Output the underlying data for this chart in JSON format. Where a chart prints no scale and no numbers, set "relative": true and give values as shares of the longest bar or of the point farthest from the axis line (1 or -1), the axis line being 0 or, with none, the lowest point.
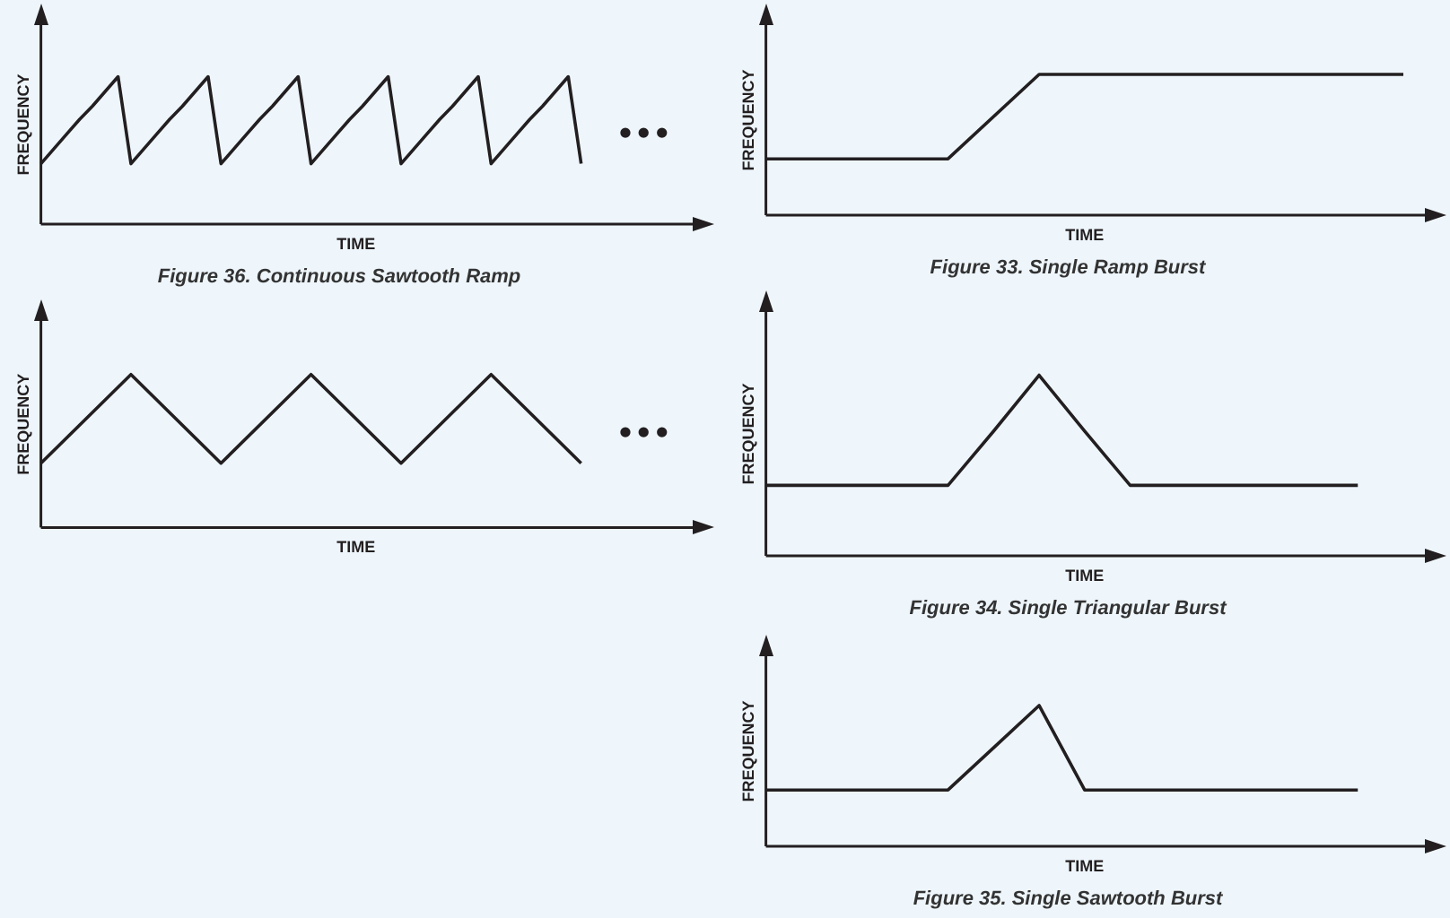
{
  "chart_data": [
    {
      "type": "line",
      "title": "Figure 36. Continuous Sawtooth Ramp",
      "xlabel": "TIME",
      "ylabel": "FREQUENCY",
      "relative": true,
      "legend": false,
      "marker": "none",
      "line_style": "solid",
      "color": "#231f20",
      "annotations": [
        "•••"
      ],
      "categories": [
        null,
        null,
        null,
        null,
        null,
        null,
        null,
        null,
        null,
        null,
        null,
        null,
        null,
        null,
        null,
        null,
        null,
        null,
        null,
        null,
        null,
        null,
        null,
        null,
        null,
        null,
        null,
        null,
        null,
        null,
        null,
        null,
        null,
        null,
        null,
        null,
        null,
        null,
        null,
        null,
        null,
        null,
        null,
        null,
        null,
        null,
        null,
        null,
        null,
        null
      ],
      "values": [
        0.41,
        0.51,
        0.61,
        0.71,
        0.8,
        0.9,
        1,
        0.41,
        0.51,
        0.61,
        0.71,
        0.8,
        0.9,
        1,
        0.41,
        0.51,
        0.61,
        0.71,
        0.8,
        0.9,
        1,
        0.41,
        0.51,
        0.61,
        0.71,
        0.8,
        0.9,
        1,
        0.41,
        0.51,
        0.61,
        0.71,
        0.8,
        0.9,
        1,
        0.41,
        0.51,
        0.61,
        0.71,
        0.8,
        0.9,
        1,
        0.41,
        null,
        null,
        null,
        null,
        null,
        null,
        null
      ]
    },
    {
      "type": "line",
      "title": "Figure 33. Single Ramp Burst",
      "xlabel": "TIME",
      "ylabel": "FREQUENCY",
      "relative": true,
      "legend": false,
      "marker": "none",
      "line_style": "solid",
      "color": "#231f20",
      "categories": [
        null,
        null,
        null,
        null,
        null,
        null,
        null,
        null
      ],
      "values": [
        0.4,
        0.4,
        0.4,
        1,
        1,
        1,
        1,
        1
      ]
    },
    {
      "type": "line",
      "xlabel": "TIME",
      "ylabel": "FREQUENCY",
      "relative": true,
      "legend": false,
      "marker": "none",
      "line_style": "solid",
      "color": "#231f20",
      "annotations": [
        "•••"
      ],
      "categories": [
        null,
        null,
        null,
        null,
        null,
        null,
        null,
        null
      ],
      "values": [
        0.42,
        1,
        0.42,
        1,
        0.42,
        1,
        0.42,
        null
      ]
    },
    {
      "type": "line",
      "title": "Figure 34. Single Triangular Burst",
      "xlabel": "TIME",
      "ylabel": "FREQUENCY",
      "relative": true,
      "legend": false,
      "marker": "none",
      "line_style": "solid",
      "color": "#231f20",
      "categories": [
        null,
        null,
        null,
        null,
        null,
        null,
        null,
        null,
        null,
        null,
        null,
        null,
        null,
        null,
        null
      ],
      "values": [
        0.39,
        0.39,
        0.39,
        0.39,
        0.39,
        0.69,
        1,
        0.69,
        0.39,
        0.39,
        0.39,
        0.39,
        0.39,
        0.39,
        null
      ]
    },
    {
      "type": "line",
      "title": "Figure 35. Single Sawtooth Burst",
      "xlabel": "TIME",
      "ylabel": "FREQUENCY",
      "relative": true,
      "legend": false,
      "marker": "none",
      "line_style": "solid",
      "color": "#231f20",
      "categories": [
        null,
        null,
        null,
        null,
        null,
        null,
        null,
        null,
        null,
        null,
        null,
        null,
        null,
        null,
        null
      ],
      "values": [
        0.4,
        0.4,
        0.4,
        0.4,
        0.4,
        0.7,
        1,
        0.4,
        0.4,
        0.4,
        0.4,
        0.4,
        0.4,
        0.4,
        null
      ]
    }
  ]
}
